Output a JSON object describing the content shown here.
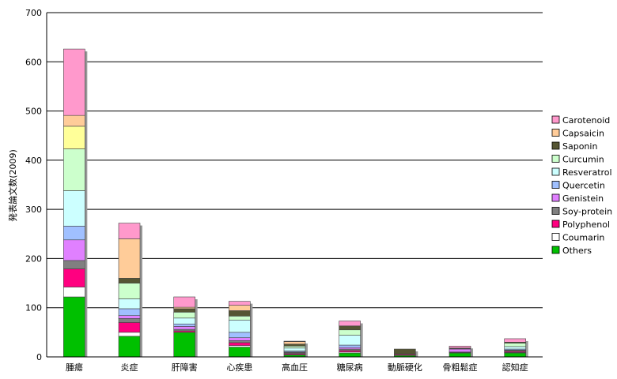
{
  "chart_data": {
    "type": "bar",
    "stacked": true,
    "ylabel": "発表論文数(2009)",
    "ylim": [
      0,
      700
    ],
    "yticks": [
      0,
      100,
      200,
      300,
      400,
      500,
      600,
      700
    ],
    "grid": true,
    "legend_position": "right",
    "categories": [
      "腫瘍",
      "炎症",
      "肝障害",
      "心疾患",
      "高血圧",
      "糖尿病",
      "動脈硬化",
      "骨粗鬆症",
      "認知症"
    ],
    "series": [
      {
        "name": "Others",
        "color": "#00c000",
        "values": [
          122,
          42,
          50,
          20,
          4,
          8,
          3,
          8,
          8
        ]
      },
      {
        "name": "Coumarin",
        "color": "#ffffff",
        "values": [
          20,
          8,
          0,
          3,
          1,
          2,
          0,
          0,
          1
        ]
      },
      {
        "name": "Polyphenol",
        "color": "#ff0080",
        "values": [
          37,
          20,
          3,
          6,
          2,
          3,
          2,
          1,
          2
        ]
      },
      {
        "name": "Soy-protein",
        "color": "#808080",
        "values": [
          17,
          8,
          3,
          4,
          2,
          3,
          0,
          1,
          2
        ]
      },
      {
        "name": "Genistein",
        "color": "#e080ff",
        "values": [
          42,
          6,
          6,
          6,
          1,
          3,
          0,
          6,
          1
        ]
      },
      {
        "name": "Quercetin",
        "color": "#a0c0ff",
        "values": [
          28,
          14,
          5,
          11,
          2,
          5,
          0,
          1,
          2
        ]
      },
      {
        "name": "Resveratrol",
        "color": "#ccffff",
        "values": [
          72,
          20,
          12,
          25,
          6,
          20,
          0,
          0,
          5
        ]
      },
      {
        "name": "Curcumin",
        "color": "#ccffcc",
        "values": [
          85,
          32,
          12,
          8,
          4,
          11,
          1,
          0,
          7
        ]
      },
      {
        "name": "Saponin",
        "color": "#555533",
        "values": [
          0,
          10,
          7,
          11,
          4,
          8,
          10,
          1,
          2
        ]
      },
      {
        "name": "Capsaicin",
        "color": "#ffcc99",
        "values": [
          0,
          80,
          3,
          11,
          5,
          0,
          0,
          0,
          0
        ]
      },
      {
        "name": "Carotenoid",
        "color": "#ff99cc",
        "values": [
          135,
          32,
          21,
          8,
          1,
          10,
          0,
          4,
          7
        ]
      }
    ],
    "extra_series_note": "",
    "extra_series_colors": {
      "Yellow": "#ffff99",
      "Peach": "#ffcc99"
    },
    "tumor_extra": [
      {
        "color": "#ffff99",
        "value": 46
      },
      {
        "color": "#ffcc99",
        "value": 22
      }
    ],
    "legend_order": [
      "Carotenoid",
      "Capsaicin",
      "Saponin",
      "Curcumin",
      "Resveratrol",
      "Quercetin",
      "Genistein",
      "Soy-protein",
      "Polyphenol",
      "Coumarin",
      "Others"
    ]
  }
}
